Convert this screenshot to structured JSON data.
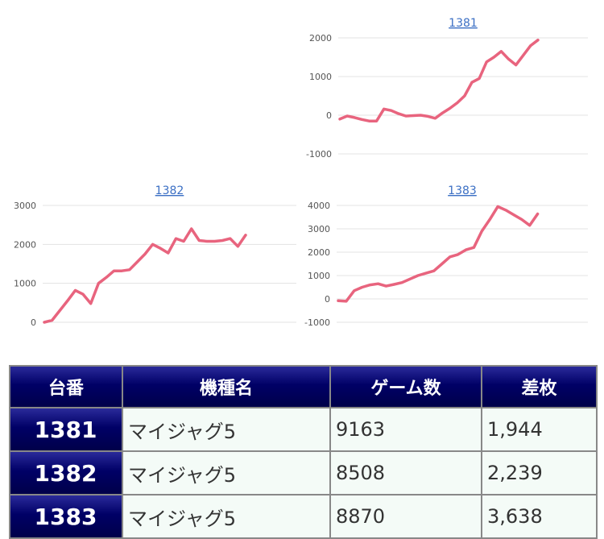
{
  "chart_data": [
    {
      "type": "line",
      "title": "1381",
      "ylim": [
        -1000,
        2000
      ],
      "yticks": [
        2000,
        1000,
        0,
        -1000
      ],
      "grid": true,
      "color": "#e8647e",
      "series": [
        {
          "values": [
            -100,
            -20,
            -60,
            -110,
            -150,
            -150,
            160,
            120,
            40,
            -20,
            -10,
            0,
            -30,
            -80,
            60,
            180,
            320,
            500,
            850,
            950,
            1380,
            1500,
            1650,
            1450,
            1300,
            1550,
            1800,
            1944
          ]
        }
      ]
    },
    {
      "type": "line",
      "title": "1382",
      "ylim": [
        0,
        3000
      ],
      "yticks": [
        3000,
        2000,
        1000,
        0
      ],
      "grid": true,
      "color": "#e8647e",
      "series": [
        {
          "values": [
            0,
            50,
            300,
            550,
            820,
            720,
            480,
            1000,
            1150,
            1320,
            1320,
            1350,
            1550,
            1750,
            2000,
            1900,
            1780,
            2150,
            2080,
            2400,
            2100,
            2080,
            2080,
            2100,
            2150,
            1950,
            2239
          ]
        }
      ]
    },
    {
      "type": "line",
      "title": "1383",
      "ylim": [
        -1000,
        4000
      ],
      "yticks": [
        4000,
        3000,
        2000,
        1000,
        0,
        -1000
      ],
      "grid": true,
      "color": "#e8647e",
      "series": [
        {
          "values": [
            -80,
            -100,
            350,
            500,
            600,
            650,
            550,
            620,
            700,
            850,
            1000,
            1100,
            1200,
            1500,
            1800,
            1900,
            2100,
            2200,
            2900,
            3400,
            3950,
            3800,
            3600,
            3400,
            3150,
            3638
          ]
        }
      ]
    }
  ],
  "table": {
    "headers": [
      "台番",
      "機種名",
      "ゲーム数",
      "差枚"
    ],
    "rows": [
      [
        "1381",
        "マイジャグ5",
        "9163",
        "1,944"
      ],
      [
        "1382",
        "マイジャグ5",
        "8508",
        "2,239"
      ],
      [
        "1383",
        "マイジャグ5",
        "8870",
        "3,638"
      ]
    ]
  }
}
